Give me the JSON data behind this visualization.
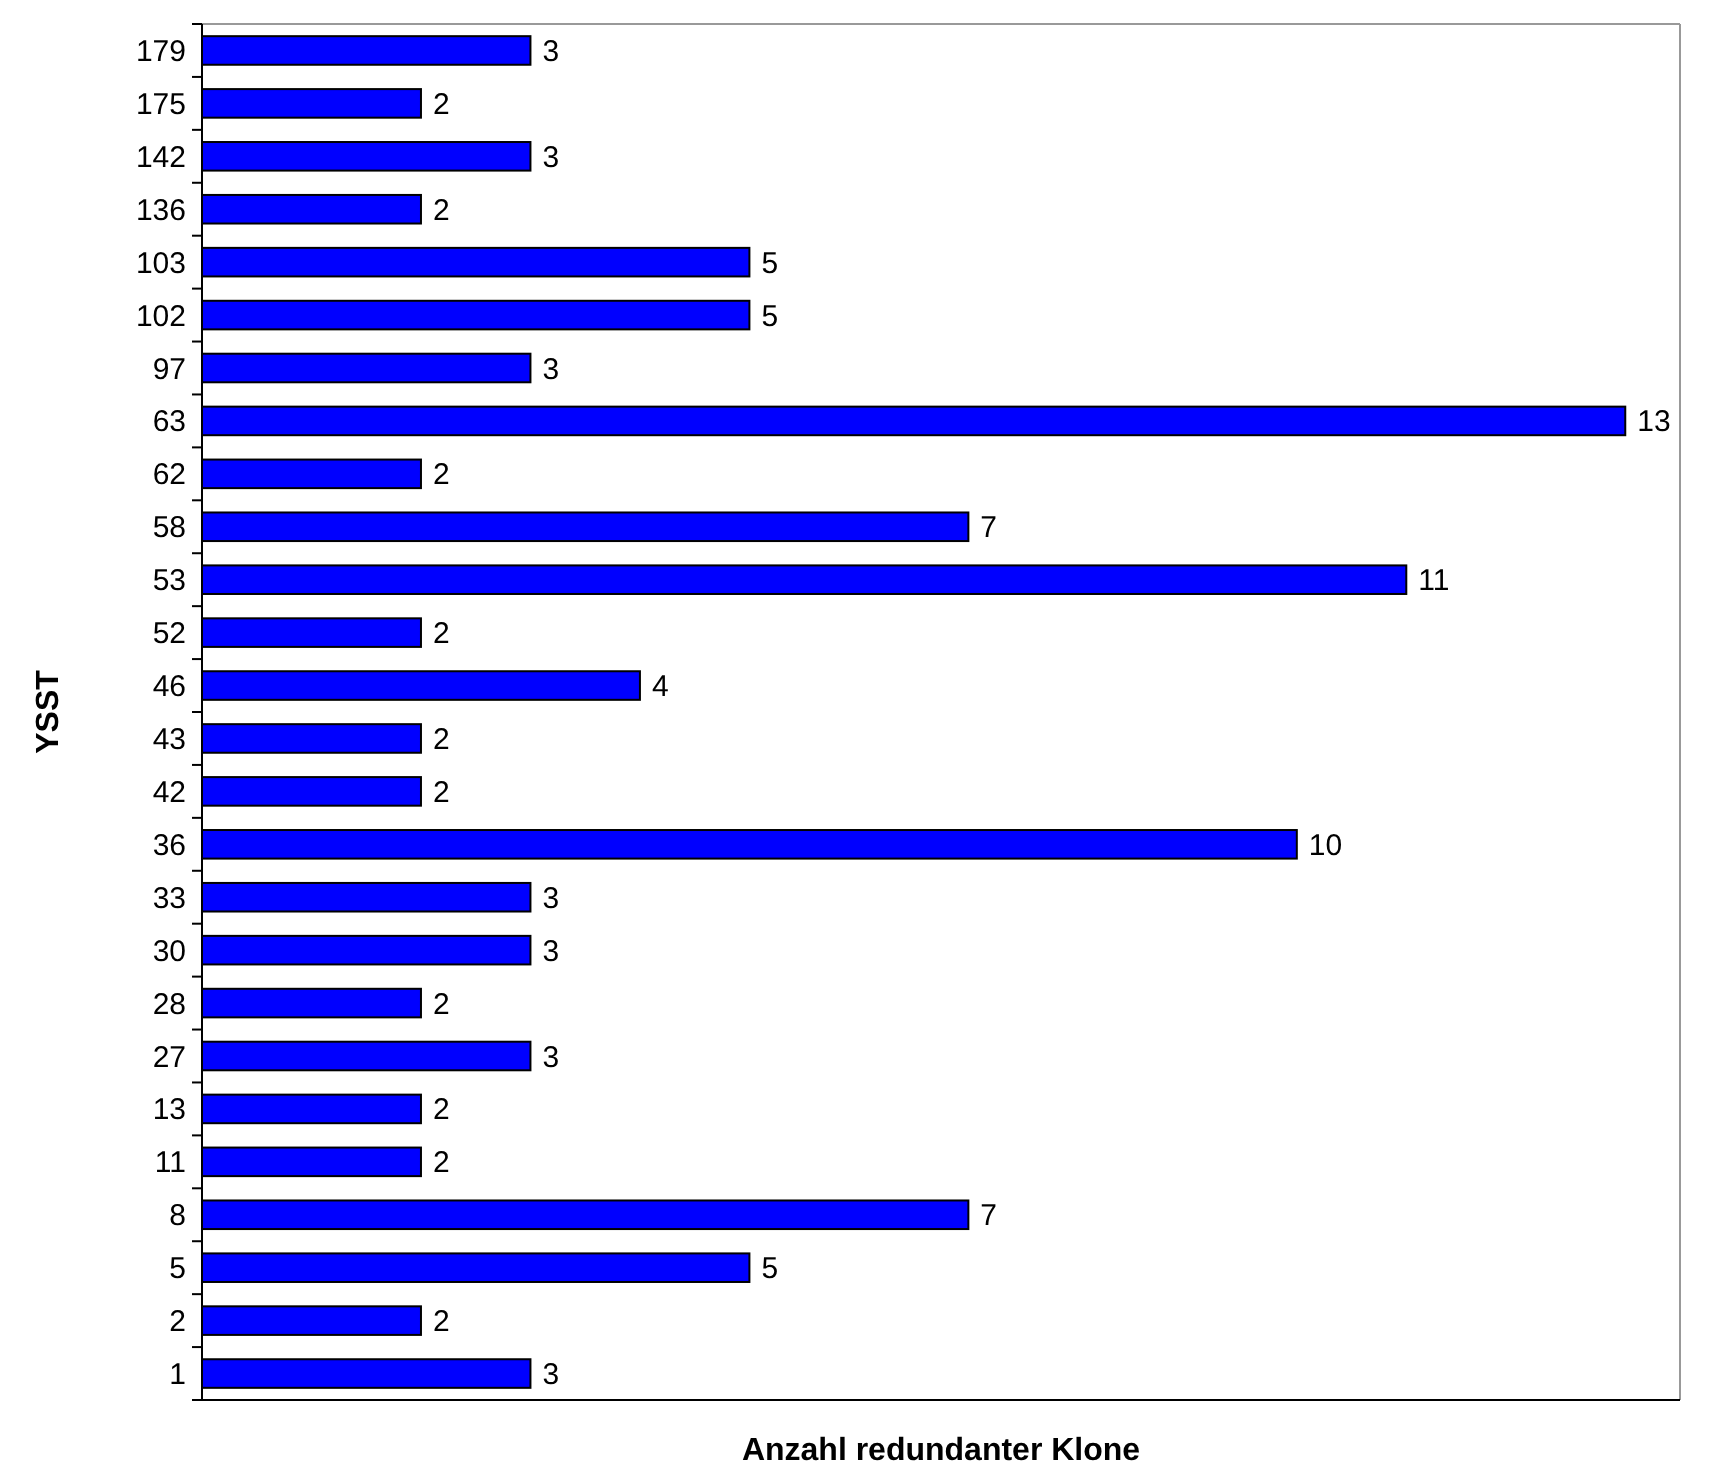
{
  "chart_data": {
    "type": "bar",
    "orientation": "horizontal",
    "xlabel": "Anzahl redundanter Klone",
    "ylabel": "YSST",
    "categories": [
      "179",
      "175",
      "142",
      "136",
      "103",
      "102",
      "97",
      "63",
      "62",
      "58",
      "53",
      "52",
      "46",
      "43",
      "42",
      "36",
      "33",
      "30",
      "28",
      "27",
      "13",
      "11",
      "8",
      "5",
      "2",
      "1"
    ],
    "values": [
      3,
      2,
      3,
      2,
      5,
      5,
      3,
      13,
      2,
      7,
      11,
      2,
      4,
      2,
      2,
      10,
      3,
      3,
      2,
      3,
      2,
      2,
      7,
      5,
      2,
      3
    ],
    "color": "#0000ff",
    "xlim": [
      0,
      13.5
    ],
    "tick_labels": "y",
    "data_labels": true
  }
}
